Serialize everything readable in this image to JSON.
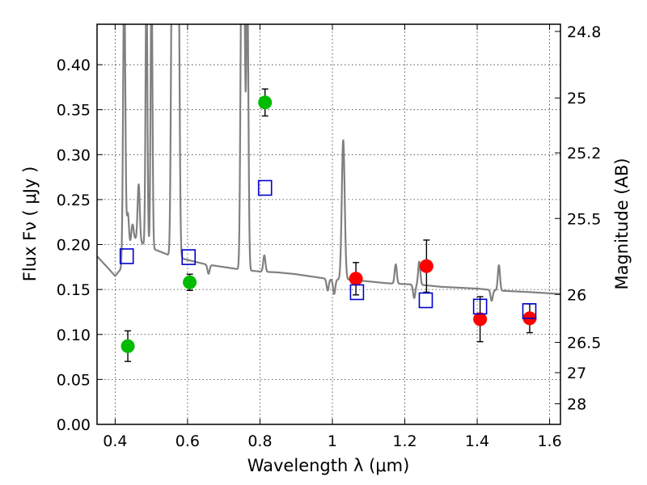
{
  "chart_data": {
    "type": "scatter",
    "title": "",
    "xlabel": "Wavelength  λ (μm)",
    "ylabel": "Flux  Fν  ( μJy )",
    "ylabel_right": "Magnitude (AB)",
    "xlim": [
      0.35,
      1.63
    ],
    "ylim": [
      0.0,
      0.445
    ],
    "grid": true,
    "x_ticks": [
      {
        "value": 0.4,
        "label": "0.4"
      },
      {
        "value": 0.6,
        "label": "0.6"
      },
      {
        "value": 0.8,
        "label": "0.8"
      },
      {
        "value": 1.0,
        "label": "1"
      },
      {
        "value": 1.2,
        "label": "1.2"
      },
      {
        "value": 1.4,
        "label": "1.4"
      },
      {
        "value": 1.6,
        "label": "1.6"
      }
    ],
    "y_ticks": [
      {
        "value": 0.0,
        "label": "0.00"
      },
      {
        "value": 0.05,
        "label": "0.05"
      },
      {
        "value": 0.1,
        "label": "0.10"
      },
      {
        "value": 0.15,
        "label": "0.15"
      },
      {
        "value": 0.2,
        "label": "0.20"
      },
      {
        "value": 0.25,
        "label": "0.25"
      },
      {
        "value": 0.3,
        "label": "0.30"
      },
      {
        "value": 0.35,
        "label": "0.35"
      },
      {
        "value": 0.4,
        "label": "0.40"
      }
    ],
    "mag_ticks": [
      {
        "flux": 0.437,
        "label": "24.8"
      },
      {
        "flux": 0.363,
        "label": "25"
      },
      {
        "flux": 0.302,
        "label": "25.2"
      },
      {
        "flux": 0.229,
        "label": "25.5"
      },
      {
        "flux": 0.1445,
        "label": "26"
      },
      {
        "flux": 0.0912,
        "label": "26.5"
      },
      {
        "flux": 0.0575,
        "label": "27"
      },
      {
        "flux": 0.0229,
        "label": "28"
      }
    ],
    "series": [
      {
        "name": "green photometry",
        "marker": "circle",
        "color": "#00bb00",
        "points": [
          {
            "x": 0.435,
            "y": 0.087,
            "err": 0.017
          },
          {
            "x": 0.606,
            "y": 0.158,
            "err": 0.009
          },
          {
            "x": 0.814,
            "y": 0.358,
            "err": 0.015
          }
        ]
      },
      {
        "name": "red photometry",
        "marker": "circle",
        "color": "#ff0000",
        "points": [
          {
            "x": 1.065,
            "y": 0.162,
            "err": 0.018
          },
          {
            "x": 1.26,
            "y": 0.176,
            "err": 0.029
          },
          {
            "x": 1.408,
            "y": 0.117,
            "err": 0.025
          },
          {
            "x": 1.545,
            "y": 0.118,
            "err": 0.016
          }
        ]
      },
      {
        "name": "model photometry",
        "marker": "square",
        "color": "#0000cc",
        "points": [
          {
            "x": 0.432,
            "y": 0.187
          },
          {
            "x": 0.603,
            "y": 0.186
          },
          {
            "x": 0.814,
            "y": 0.263
          },
          {
            "x": 1.068,
            "y": 0.147
          },
          {
            "x": 1.258,
            "y": 0.138
          },
          {
            "x": 1.408,
            "y": 0.131
          },
          {
            "x": 1.544,
            "y": 0.126
          }
        ]
      }
    ],
    "spectrum": {
      "name": "model spectrum",
      "color": "#808080",
      "continuum": [
        [
          0.35,
          0.187
        ],
        [
          0.38,
          0.174
        ],
        [
          0.4,
          0.165
        ],
        [
          0.42,
          0.175
        ],
        [
          0.45,
          0.208
        ],
        [
          0.48,
          0.2
        ],
        [
          0.5,
          0.196
        ],
        [
          0.55,
          0.188
        ],
        [
          0.6,
          0.183
        ],
        [
          0.65,
          0.178
        ],
        [
          0.7,
          0.175
        ],
        [
          0.75,
          0.172
        ],
        [
          0.8,
          0.17
        ],
        [
          0.85,
          0.169
        ],
        [
          0.9,
          0.167
        ],
        [
          0.95,
          0.164
        ],
        [
          1.0,
          0.161
        ],
        [
          1.05,
          0.161
        ],
        [
          1.1,
          0.159
        ],
        [
          1.15,
          0.157
        ],
        [
          1.2,
          0.156
        ],
        [
          1.25,
          0.155
        ],
        [
          1.3,
          0.153
        ],
        [
          1.35,
          0.152
        ],
        [
          1.4,
          0.151
        ],
        [
          1.45,
          0.149
        ],
        [
          1.5,
          0.148
        ],
        [
          1.55,
          0.147
        ],
        [
          1.63,
          0.145
        ]
      ],
      "lines": [
        {
          "x": 0.425,
          "peak": 0.5,
          "width": 0.003
        },
        {
          "x": 0.435,
          "peak": 0.234,
          "width": 0.003
        },
        {
          "x": 0.4475,
          "peak": 0.222,
          "width": 0.003
        },
        {
          "x": 0.465,
          "peak": 0.267,
          "width": 0.003
        },
        {
          "x": 0.4865,
          "peak": 0.5,
          "width": 0.0025
        },
        {
          "x": 0.5005,
          "peak": 0.5,
          "width": 0.0025
        },
        {
          "x": 0.557,
          "peak": 0.5,
          "width": 0.003
        },
        {
          "x": 0.563,
          "peak": 0.5,
          "width": 0.003
        },
        {
          "x": 0.569,
          "peak": 0.5,
          "width": 0.003
        },
        {
          "x": 0.575,
          "peak": 0.5,
          "width": 0.003
        },
        {
          "x": 0.749,
          "peak": 0.5,
          "width": 0.003
        },
        {
          "x": 0.756,
          "peak": 0.5,
          "width": 0.003
        },
        {
          "x": 0.765,
          "peak": 0.5,
          "width": 0.003
        },
        {
          "x": 0.812,
          "peak": 0.188,
          "width": 0.003
        },
        {
          "x": 1.03,
          "peak": 0.316,
          "width": 0.004
        },
        {
          "x": 1.175,
          "peak": 0.178,
          "width": 0.003
        },
        {
          "x": 1.24,
          "peak": 0.181,
          "width": 0.003
        },
        {
          "x": 1.46,
          "peak": 0.177,
          "width": 0.003
        }
      ],
      "absorptions": [
        {
          "x": 0.658,
          "depth": 0.01,
          "width": 0.003
        },
        {
          "x": 0.762,
          "depth": 0.017,
          "width": 0.003
        },
        {
          "x": 0.987,
          "depth": 0.013,
          "width": 0.003
        },
        {
          "x": 1.005,
          "depth": 0.016,
          "width": 0.003
        },
        {
          "x": 1.226,
          "depth": 0.015,
          "width": 0.003
        },
        {
          "x": 1.44,
          "depth": 0.012,
          "width": 0.003
        }
      ]
    }
  }
}
